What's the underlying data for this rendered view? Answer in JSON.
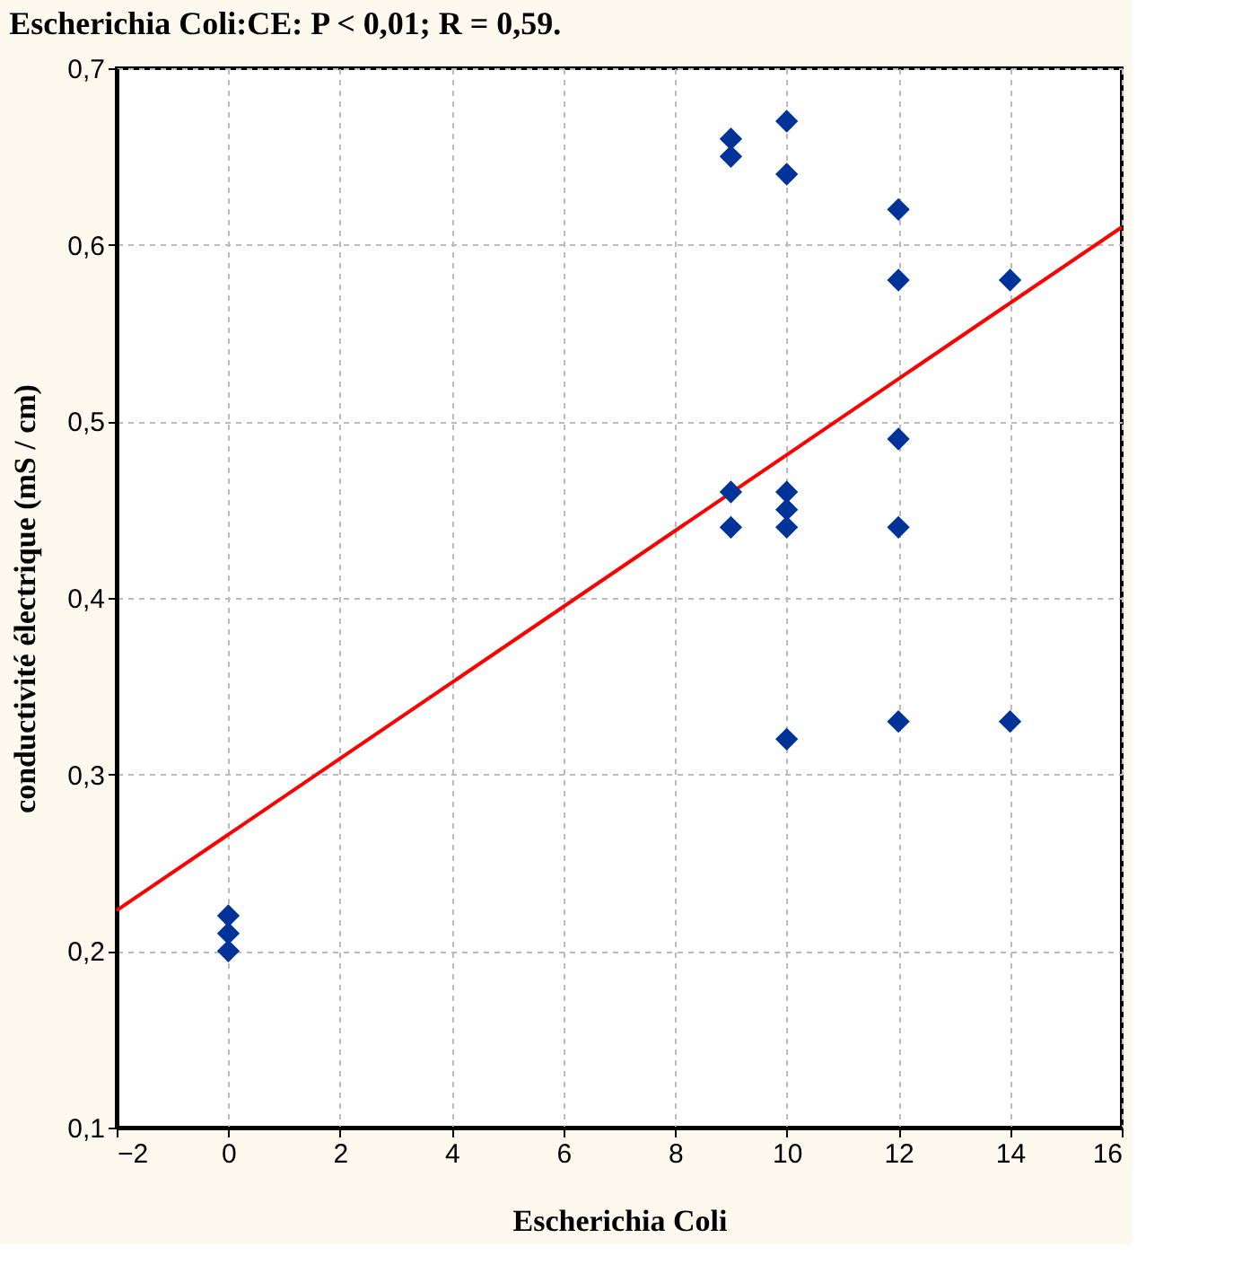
{
  "chart_data": {
    "type": "scatter",
    "title": "Escherichia Coli:CE:  P < 0,01;  R = 0,59.",
    "xlabel": "Escherichia Coli",
    "ylabel": "conductivité électrique (mS / cm)",
    "xlim": [
      -2,
      16
    ],
    "xticks": [
      -2,
      0,
      2,
      4,
      6,
      8,
      10,
      12,
      14,
      16
    ],
    "ylim": [
      0.1,
      0.7
    ],
    "yticks": [
      {
        "value": 0.1,
        "label": "0,1"
      },
      {
        "value": 0.2,
        "label": "0,2"
      },
      {
        "value": 0.3,
        "label": "0,3"
      },
      {
        "value": 0.4,
        "label": "0,4"
      },
      {
        "value": 0.5,
        "label": "0,5"
      },
      {
        "value": 0.6,
        "label": "0,6"
      },
      {
        "value": 0.7,
        "label": "0,7"
      }
    ],
    "grid": true,
    "series": [
      {
        "marker": "diamond",
        "color": "#003399",
        "x": [
          0,
          0,
          0,
          9,
          9,
          9,
          9,
          10,
          10,
          10,
          10,
          10,
          10,
          12,
          12,
          12,
          12,
          12,
          14,
          14
        ],
        "values": [
          0.22,
          0.21,
          0.2,
          0.66,
          0.65,
          0.46,
          0.44,
          0.67,
          0.64,
          0.46,
          0.45,
          0.44,
          0.32,
          0.62,
          0.58,
          0.49,
          0.44,
          0.33,
          0.58,
          0.33
        ]
      },
      {
        "type": "line",
        "color": "#ff0000",
        "x": [
          -2,
          16
        ],
        "values": [
          0.223,
          0.61
        ]
      }
    ]
  }
}
